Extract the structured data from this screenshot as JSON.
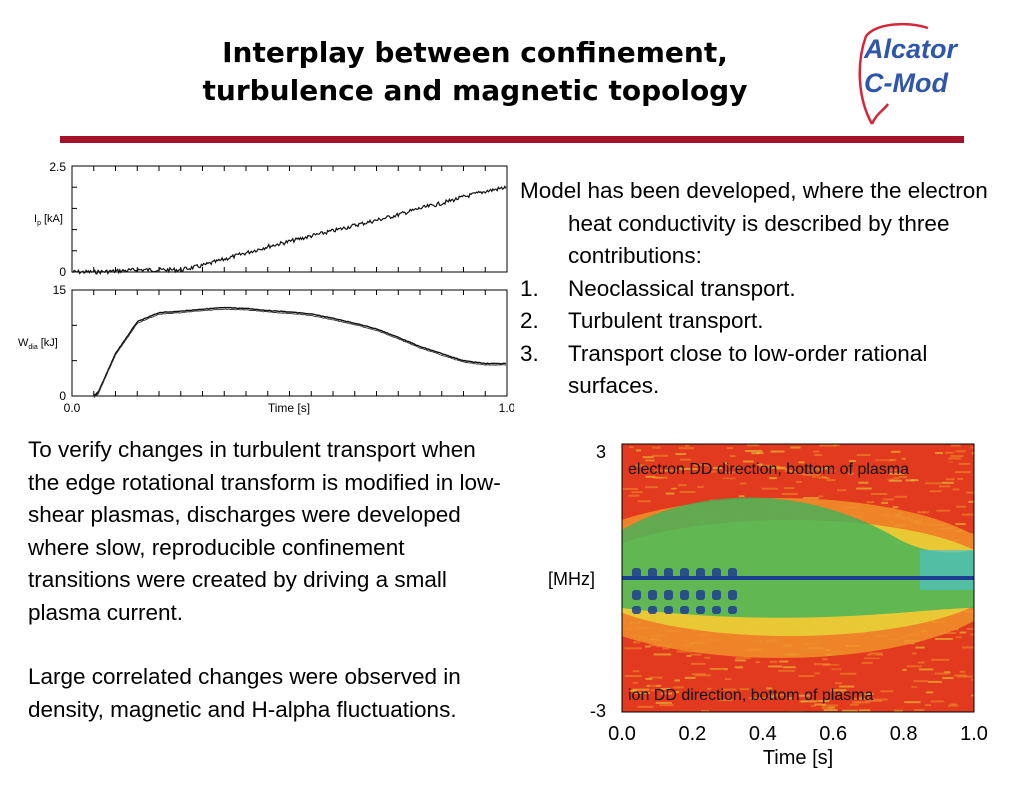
{
  "slide": {
    "title_line1": "Interplay between confinement,",
    "title_line2": "turbulence and magnetic topology",
    "logo": {
      "line1": "Alcator",
      "line2": "C-Mod",
      "color": "#2f56a8",
      "accent": "#d6263a"
    },
    "rule_color": "#a5132a"
  },
  "right_text": {
    "intro": "Model has been developed, where the electron heat conductivity is described by three contributions:",
    "items": [
      {
        "num": "1.",
        "text": "Neoclassical transport."
      },
      {
        "num": "2.",
        "text": "Turbulent transport."
      },
      {
        "num": "3.",
        "text": "Transport close to low-order rational surfaces."
      }
    ]
  },
  "left_text": {
    "para1": "To verify changes in turbulent transport when the edge rotational transform is modified in low-shear plasmas, discharges were developed where slow, reproducible confinement transitions were created by driving a small plasma current.",
    "para2": "Large correlated changes were observed in density, magnetic and H-alpha fluctuations."
  },
  "chart_data": [
    {
      "type": "line",
      "ylabel": "I",
      "ylabel_sub": "p",
      "ylabel_unit": "[kA]",
      "ylim": [
        0,
        2.5
      ],
      "yticks": [
        "2.5",
        "0"
      ],
      "xlim": [
        0,
        1
      ],
      "x": [
        0,
        0.05,
        0.1,
        0.15,
        0.2,
        0.25,
        0.3,
        0.35,
        0.4,
        0.45,
        0.5,
        0.55,
        0.6,
        0.65,
        0.7,
        0.75,
        0.8,
        0.85,
        0.9,
        0.95,
        1.0
      ],
      "series": [
        {
          "values": [
            0.0,
            0.0,
            0.02,
            0.05,
            0.05,
            0.05,
            0.15,
            0.3,
            0.45,
            0.6,
            0.72,
            0.85,
            0.97,
            1.1,
            1.22,
            1.35,
            1.5,
            1.62,
            1.77,
            1.9,
            2.0
          ]
        }
      ],
      "color": "#111111"
    },
    {
      "type": "line",
      "ylabel": "W",
      "ylabel_sub": "dia",
      "ylabel_unit": "[kJ]",
      "ylim": [
        0,
        15
      ],
      "yticks": [
        "15",
        "0"
      ],
      "xlim": [
        0,
        1
      ],
      "xticks": [
        "0.0",
        "1.0"
      ],
      "xlabel": "Time [s]",
      "x": [
        0,
        0.05,
        0.06,
        0.1,
        0.15,
        0.2,
        0.25,
        0.3,
        0.35,
        0.4,
        0.45,
        0.5,
        0.55,
        0.6,
        0.65,
        0.7,
        0.75,
        0.8,
        0.85,
        0.9,
        0.95,
        1.0
      ],
      "series": [
        {
          "values": [
            null,
            0.0,
            0.5,
            6.0,
            10.5,
            11.8,
            12.0,
            12.3,
            12.5,
            12.4,
            12.1,
            11.9,
            11.6,
            11.0,
            10.3,
            9.5,
            8.3,
            7.0,
            6.0,
            5.0,
            4.6,
            4.6
          ]
        }
      ],
      "color": "#111111"
    },
    {
      "type": "heatmap",
      "ylabel": "[MHz]",
      "xlabel": "Time [s]",
      "ylim": [
        -3,
        3
      ],
      "yticks": [
        "3",
        "-3"
      ],
      "xlim": [
        0,
        1
      ],
      "xticks": [
        "0.0",
        "0.2",
        "0.4",
        "0.6",
        "0.8",
        "1.0"
      ],
      "annotations": [
        "electron DD direction, bottom of plasma",
        "ion DD direction, bottom of plasma"
      ],
      "colors": {
        "hot": "#e23a1e",
        "warm": "#f0902a",
        "mid": "#e7d93a",
        "cool": "#3fb35a",
        "cold": "#1d3f8f",
        "cyan": "#4bc2c8"
      }
    }
  ]
}
